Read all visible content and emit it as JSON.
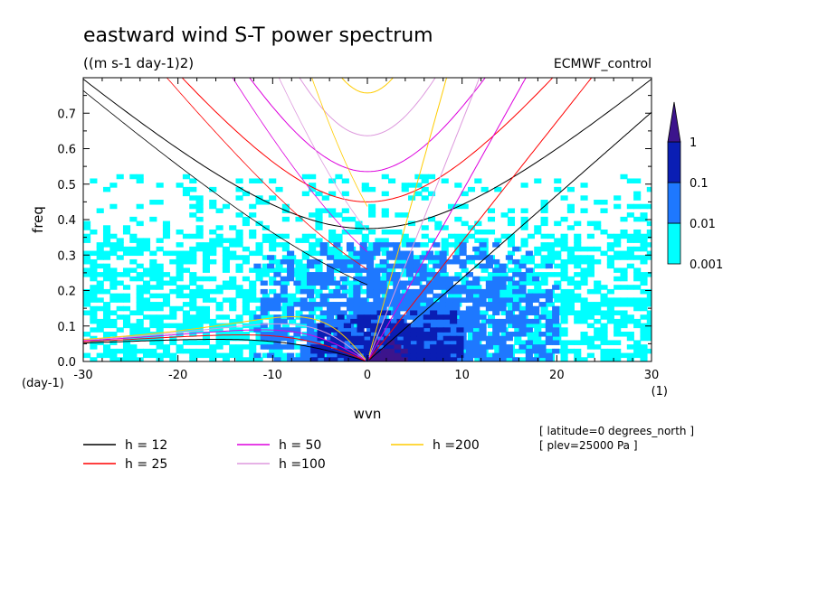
{
  "chart_data": {
    "type": "heatmap",
    "title": "eastward wind S-T power spectrum",
    "units": "((m s-1 day-1)2)",
    "dataset": "ECMWF_control",
    "xlabel": "wvn",
    "ylabel": "freq",
    "x_units": "(1)",
    "y_units": "(day-1)",
    "xlim": [
      -30,
      30
    ],
    "ylim": [
      0,
      0.8
    ],
    "x_ticks": [
      {
        "value": -30,
        "label": "-30"
      },
      {
        "value": -20,
        "label": "-20"
      },
      {
        "value": -10,
        "label": "-10"
      },
      {
        "value": 0,
        "label": "0"
      },
      {
        "value": 10,
        "label": "10"
      },
      {
        "value": 20,
        "label": "20"
      },
      {
        "value": 30,
        "label": "30"
      }
    ],
    "y_ticks": [
      {
        "value": 0.0,
        "label": "0.0"
      },
      {
        "value": 0.1,
        "label": "0.1"
      },
      {
        "value": 0.2,
        "label": "0.2"
      },
      {
        "value": 0.3,
        "label": "0.3"
      },
      {
        "value": 0.4,
        "label": "0.4"
      },
      {
        "value": 0.5,
        "label": "0.5"
      },
      {
        "value": 0.6,
        "label": "0.6"
      },
      {
        "value": 0.7,
        "label": "0.7"
      }
    ],
    "colorbar": {
      "levels": [
        {
          "value": "0.001",
          "label": "0.001",
          "color": "#00ffff"
        },
        {
          "value": "0.01",
          "label": "0.01",
          "color": "#1e78ff"
        },
        {
          "value": "0.1",
          "label": "0.1",
          "color": "#0a1eb4"
        },
        {
          "value": "1",
          "label": "1",
          "color": "#3c148c"
        }
      ]
    },
    "heat_regions": [
      {
        "level": "0.001",
        "x_range": [
          -30,
          30
        ],
        "y_range": [
          0.0,
          0.52
        ],
        "description": "patchy background"
      },
      {
        "level": "0.01",
        "x_range": [
          -12,
          20
        ],
        "y_range": [
          0.0,
          0.33
        ]
      },
      {
        "level": "0.1",
        "x_range": [
          -6,
          10
        ],
        "y_range": [
          0.0,
          0.14
        ]
      },
      {
        "level": "1",
        "x_range": [
          0,
          4
        ],
        "y_range": [
          0.0,
          0.05
        ]
      }
    ],
    "dispersion_curves": [
      {
        "label": "h = 12",
        "h": 12,
        "color": "#000000"
      },
      {
        "label": "h = 25",
        "h": 25,
        "color": "#ff0000"
      },
      {
        "label": "h = 50",
        "h": 50,
        "color": "#dd00dd"
      },
      {
        "label": "h =100",
        "h": 100,
        "color": "#dd99dd"
      },
      {
        "label": "h =200",
        "h": 200,
        "color": "#ffcc00"
      }
    ],
    "annotations": [
      "[ latitude=0 degrees_north ]",
      "[ plev=25000 Pa ]"
    ]
  }
}
